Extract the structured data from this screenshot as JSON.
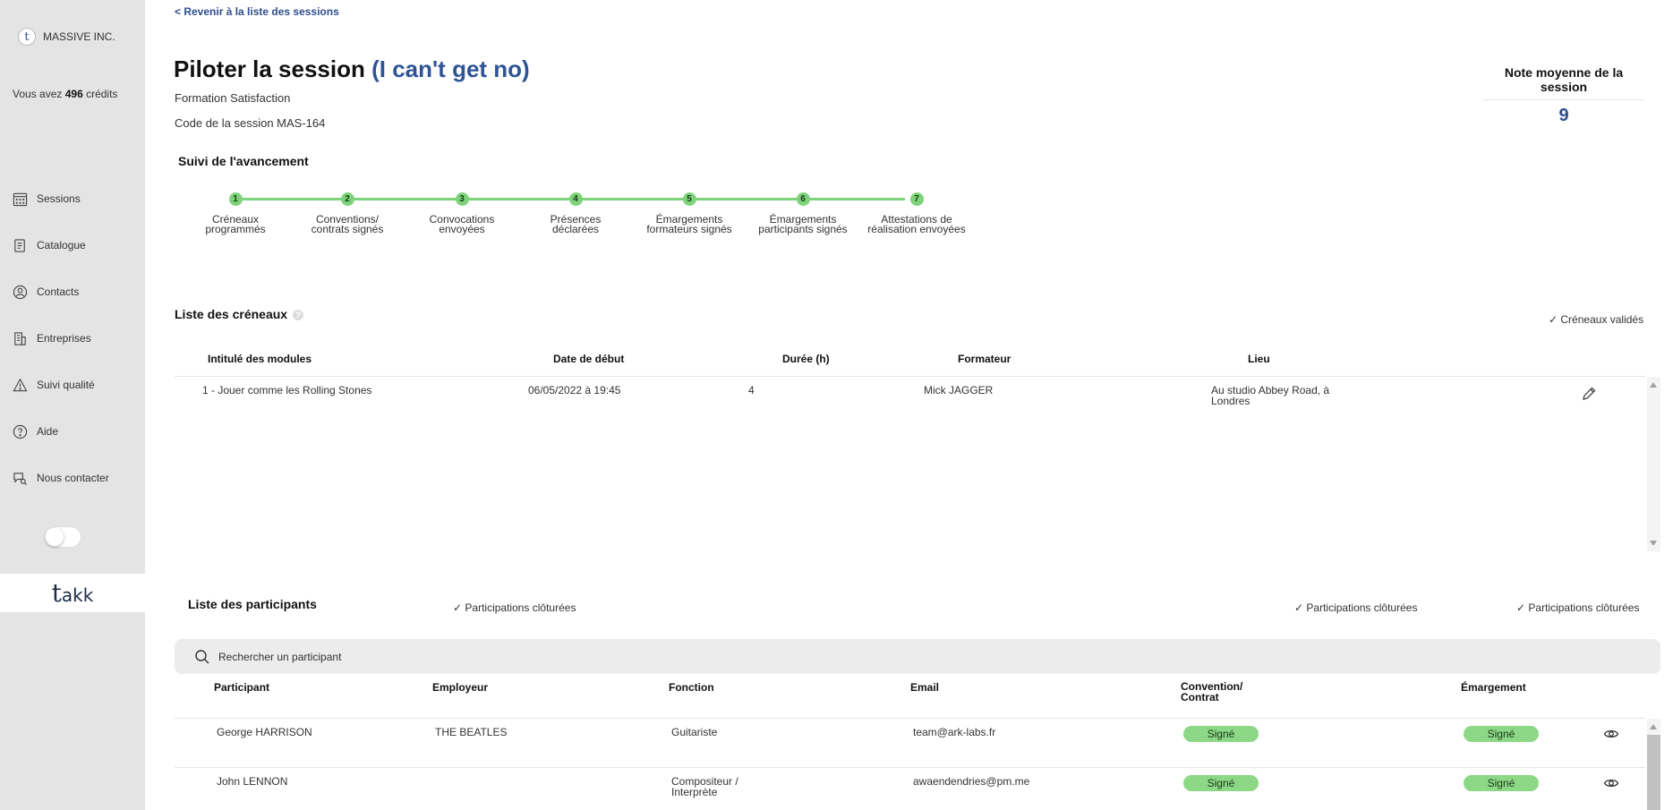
{
  "sidebar": {
    "company": "MASSIVE INC.",
    "credits_prefix": "Vous avez ",
    "credits_value": "496",
    "credits_suffix": " crédits",
    "items": [
      {
        "label": "Sessions",
        "icon": "calendar-icon"
      },
      {
        "label": "Catalogue",
        "icon": "document-icon"
      },
      {
        "label": "Contacts",
        "icon": "user-icon"
      },
      {
        "label": "Entreprises",
        "icon": "building-icon"
      },
      {
        "label": "Suivi qualité",
        "icon": "warning-icon"
      },
      {
        "label": "Aide",
        "icon": "help-icon"
      },
      {
        "label": "Nous contacter",
        "icon": "chat-search-icon"
      }
    ],
    "footer_logo": "akk"
  },
  "header": {
    "back_link": "< Revenir à la liste des sessions",
    "title": "Piloter la session ",
    "title_accent": "(I can't get no)",
    "training": "Formation Satisfaction",
    "code": "Code de la session MAS-164",
    "rating_label": "Note moyenne de la session",
    "rating_value": "9"
  },
  "progress": {
    "title": "Suivi de l'avancement",
    "color": "#7dd37a",
    "steps": [
      {
        "num": "1",
        "line1": "Créneaux",
        "line2": "programmés"
      },
      {
        "num": "2",
        "line1": "Conventions/",
        "line2": "contrats signés"
      },
      {
        "num": "3",
        "line1": "Convocations",
        "line2": "envoyées"
      },
      {
        "num": "4",
        "line1": "Présences",
        "line2": "déclarées"
      },
      {
        "num": "5",
        "line1": "Émargements",
        "line2": "formateurs signés"
      },
      {
        "num": "6",
        "line1": "Émargements",
        "line2": "participants signés"
      },
      {
        "num": "7",
        "line1": "Attestations de",
        "line2": "réalisation envoyées"
      }
    ]
  },
  "slots": {
    "title": "Liste des créneaux",
    "validated": "✓ Créneaux validés",
    "headers": {
      "module": "Intitulé des modules",
      "start": "Date de début",
      "duration": "Durée (h)",
      "trainer": "Formateur",
      "place": "Lieu"
    },
    "rows": [
      {
        "module": "1 - Jouer comme les Rolling Stones",
        "start": "06/05/2022 à 19:45",
        "duration": "4",
        "trainer": "Mick JAGGER",
        "place_line1": "Au studio Abbey Road, à",
        "place_line2": "Londres"
      }
    ]
  },
  "participants": {
    "title": "Liste des participants",
    "status1": "✓ Participations clôturées",
    "status2": "✓ Participations clôturées",
    "status3": "✓ Participations clôturées",
    "search_placeholder": "Rechercher un participant",
    "headers": {
      "participant": "Participant",
      "employer": "Employeur",
      "function": "Fonction",
      "email": "Email",
      "convention_line1": "Convention/",
      "convention_line2": "Contrat",
      "signature": "Émargement"
    },
    "badge_color": "#8dd886",
    "rows": [
      {
        "name": "George HARRISON",
        "employer": "THE BEATLES",
        "function_line1": "Guitariste",
        "function_line2": "",
        "email": "team@ark-labs.fr",
        "convention": "Signé",
        "signature": "Signé"
      },
      {
        "name": "John LENNON",
        "employer": "",
        "function_line1": "Compositeur /",
        "function_line2": "Interprète",
        "email": "awaendendries@pm.me",
        "convention": "Signé",
        "signature": "Signé"
      }
    ]
  }
}
